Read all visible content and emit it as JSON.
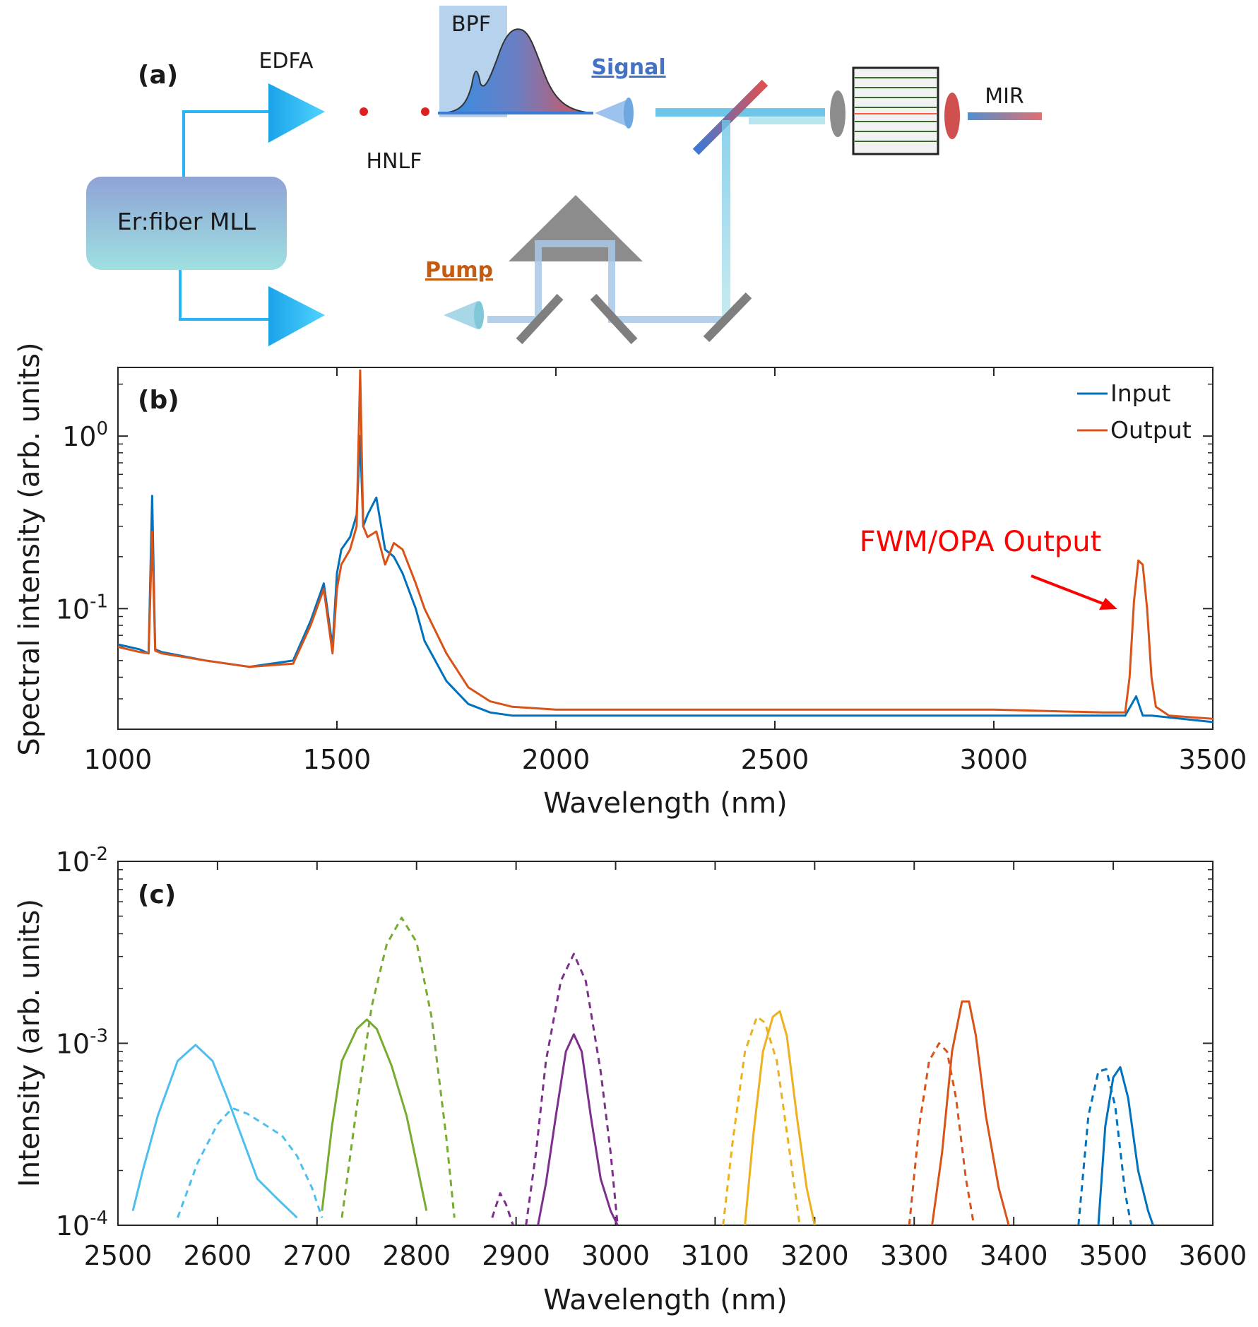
{
  "diagram": {
    "panel_label": "(a)",
    "edfa": "EDFA",
    "bpf": "BPF",
    "signal": "Signal",
    "mir": "MIR",
    "hnlf": "HNLF",
    "laser": "Er:fiber MLL",
    "pump": "Pump",
    "colors": {
      "fiber": "#29b6f6",
      "signal": "#4472c4",
      "pump": "#c55a11",
      "amp": "#1aa3e8",
      "prism": "#8c8c8c"
    }
  },
  "chart_data": [
    {
      "type": "line",
      "panel_label": "(b)",
      "title": "",
      "xlabel": "Wavelength (nm)",
      "ylabel": "Spectral intensity (arb. units)",
      "xscale": "linear",
      "yscale": "log",
      "xlim": [
        1000,
        3500
      ],
      "ylim": [
        0.02,
        2.5
      ],
      "xticks": [
        1000,
        1500,
        2000,
        2500,
        3000,
        3500
      ],
      "xtick_labels": [
        "1000",
        "1500",
        "2000",
        "2500",
        "3000",
        "3500"
      ],
      "yticks": [
        0.1,
        1
      ],
      "ytick_labels": [
        {
          "base": "10",
          "exp": "-1"
        },
        {
          "base": "10",
          "exp": "0"
        }
      ],
      "legend": {
        "position": "top-right",
        "entries": [
          "Input",
          "Output"
        ]
      },
      "annotation": {
        "text": "FWM/OPA Output",
        "color": "#ff0000",
        "points_to": [
          3325,
          0.09
        ]
      },
      "series": [
        {
          "name": "Input",
          "color": "#0072bd",
          "x": [
            1000,
            1050,
            1070,
            1078,
            1085,
            1100,
            1200,
            1300,
            1400,
            1440,
            1470,
            1490,
            1500,
            1510,
            1530,
            1545,
            1553,
            1560,
            1570,
            1590,
            1610,
            1630,
            1650,
            1680,
            1700,
            1750,
            1800,
            1850,
            1900,
            2000,
            2500,
            3000,
            3300,
            3325,
            3340,
            3360,
            3500
          ],
          "y": [
            0.062,
            0.058,
            0.055,
            0.45,
            0.058,
            0.056,
            0.05,
            0.046,
            0.05,
            0.085,
            0.14,
            0.06,
            0.16,
            0.22,
            0.26,
            0.35,
            1.0,
            0.3,
            0.35,
            0.44,
            0.22,
            0.2,
            0.16,
            0.1,
            0.065,
            0.038,
            0.028,
            0.025,
            0.024,
            0.024,
            0.024,
            0.024,
            0.024,
            0.031,
            0.024,
            0.024,
            0.022
          ]
        },
        {
          "name": "Output",
          "color": "#d95319",
          "x": [
            1000,
            1050,
            1070,
            1078,
            1085,
            1100,
            1200,
            1300,
            1400,
            1440,
            1470,
            1490,
            1500,
            1510,
            1530,
            1545,
            1553,
            1560,
            1570,
            1590,
            1610,
            1630,
            1650,
            1680,
            1700,
            1750,
            1800,
            1850,
            1900,
            2000,
            2500,
            3000,
            3250,
            3300,
            3310,
            3320,
            3330,
            3340,
            3350,
            3360,
            3370,
            3400,
            3500
          ],
          "y": [
            0.06,
            0.056,
            0.055,
            0.28,
            0.057,
            0.055,
            0.05,
            0.046,
            0.048,
            0.08,
            0.13,
            0.055,
            0.13,
            0.18,
            0.22,
            0.3,
            2.4,
            0.3,
            0.26,
            0.28,
            0.18,
            0.24,
            0.22,
            0.14,
            0.1,
            0.055,
            0.035,
            0.029,
            0.027,
            0.026,
            0.026,
            0.026,
            0.025,
            0.025,
            0.04,
            0.11,
            0.19,
            0.18,
            0.1,
            0.04,
            0.027,
            0.024,
            0.023
          ]
        }
      ]
    },
    {
      "type": "line",
      "panel_label": "(c)",
      "title": "",
      "xlabel": "Wavelength (nm)",
      "ylabel": "Intensity (arb. units)",
      "xscale": "linear",
      "yscale": "log",
      "xlim": [
        2500,
        3600
      ],
      "ylim": [
        0.0001,
        0.01
      ],
      "xticks": [
        2500,
        2600,
        2700,
        2800,
        2900,
        3000,
        3100,
        3200,
        3300,
        3400,
        3500,
        3600
      ],
      "xtick_labels": [
        "2500",
        "2600",
        "2700",
        "2800",
        "2900",
        "3000",
        "3100",
        "3200",
        "3300",
        "3400",
        "3500",
        "3600"
      ],
      "yticks": [
        0.0001,
        0.001,
        0.01
      ],
      "ytick_labels": [
        {
          "base": "10",
          "exp": "-4"
        },
        {
          "base": "10",
          "exp": "-3"
        },
        {
          "base": "10",
          "exp": "-2"
        }
      ],
      "series": [
        {
          "name": "light-blue solid",
          "color": "#4dbeee",
          "dash": false,
          "x": [
            2515,
            2525,
            2540,
            2560,
            2578,
            2595,
            2610,
            2625,
            2640,
            2660,
            2680
          ],
          "y": [
            0.00012,
            0.0002,
            0.0004,
            0.0008,
            0.00098,
            0.0008,
            0.0005,
            0.0003,
            0.00018,
            0.00014,
            0.00011
          ]
        },
        {
          "name": "light-blue dashed",
          "color": "#4dbeee",
          "dash": true,
          "x": [
            2560,
            2580,
            2600,
            2615,
            2630,
            2650,
            2665,
            2680,
            2695,
            2705
          ],
          "y": [
            0.00011,
            0.00022,
            0.00036,
            0.00044,
            0.00041,
            0.00035,
            0.00031,
            0.00024,
            0.00016,
            0.00011
          ]
        },
        {
          "name": "green solid",
          "color": "#77ac30",
          "dash": false,
          "x": [
            2705,
            2715,
            2725,
            2740,
            2750,
            2760,
            2775,
            2790,
            2800,
            2810
          ],
          "y": [
            0.00012,
            0.00035,
            0.0008,
            0.0012,
            0.00135,
            0.0012,
            0.00075,
            0.0004,
            0.00022,
            0.00012
          ]
        },
        {
          "name": "green dashed",
          "color": "#77ac30",
          "dash": true,
          "x": [
            2725,
            2740,
            2755,
            2770,
            2785,
            2800,
            2815,
            2830,
            2838
          ],
          "y": [
            0.00011,
            0.00045,
            0.0016,
            0.0035,
            0.0049,
            0.0036,
            0.0014,
            0.0003,
            0.00011
          ]
        },
        {
          "name": "purple solid",
          "color": "#7e2f8e",
          "dash": false,
          "x": [
            2922,
            2930,
            2940,
            2950,
            2958,
            2966,
            2975,
            2985,
            2995,
            3002
          ],
          "y": [
            0.0001,
            0.00017,
            0.0004,
            0.0009,
            0.00112,
            0.0009,
            0.0004,
            0.00018,
            0.00012,
            0.0001
          ]
        },
        {
          "name": "purple dashed",
          "color": "#7e2f8e",
          "dash": true,
          "x": [
            2910,
            2920,
            2930,
            2945,
            2958,
            2970,
            2985,
            2995,
            3002
          ],
          "y": [
            0.0001,
            0.00025,
            0.0008,
            0.0022,
            0.0031,
            0.0022,
            0.0007,
            0.00025,
            0.0001
          ]
        },
        {
          "name": "purple dashed small",
          "color": "#7e2f8e",
          "dash": true,
          "x": [
            2876,
            2884,
            2890,
            2897
          ],
          "y": [
            0.00011,
            0.00015,
            0.00013,
            0.0001
          ]
        },
        {
          "name": "yellow solid",
          "color": "#edb120",
          "dash": false,
          "x": [
            3130,
            3138,
            3148,
            3158,
            3165,
            3172,
            3182,
            3192,
            3200
          ],
          "y": [
            0.0001,
            0.0003,
            0.0009,
            0.0014,
            0.0015,
            0.0011,
            0.0004,
            0.00016,
            0.0001
          ]
        },
        {
          "name": "yellow dashed",
          "color": "#edb120",
          "dash": true,
          "x": [
            3108,
            3118,
            3130,
            3142,
            3150,
            3162,
            3175,
            3185
          ],
          "y": [
            0.0001,
            0.0003,
            0.0009,
            0.0014,
            0.0013,
            0.0008,
            0.00025,
            0.0001
          ]
        },
        {
          "name": "orange solid",
          "color": "#d95319",
          "dash": false,
          "x": [
            3318,
            3328,
            3338,
            3348,
            3355,
            3362,
            3372,
            3385,
            3395
          ],
          "y": [
            0.0001,
            0.00025,
            0.0009,
            0.0017,
            0.0017,
            0.0011,
            0.0004,
            0.00016,
            0.0001
          ]
        },
        {
          "name": "orange dashed",
          "color": "#d95319",
          "dash": true,
          "x": [
            3295,
            3305,
            3315,
            3325,
            3333,
            3342,
            3352,
            3360
          ],
          "y": [
            0.0001,
            0.00035,
            0.0008,
            0.001,
            0.0009,
            0.0005,
            0.00018,
            0.0001
          ]
        },
        {
          "name": "blue solid",
          "color": "#0072bd",
          "dash": false,
          "x": [
            3485,
            3492,
            3500,
            3507,
            3515,
            3525,
            3535,
            3540
          ],
          "y": [
            0.0001,
            0.00035,
            0.00065,
            0.00074,
            0.0005,
            0.0002,
            0.00012,
            0.0001
          ]
        },
        {
          "name": "blue dashed",
          "color": "#0072bd",
          "dash": true,
          "x": [
            3465,
            3475,
            3485,
            3493,
            3502,
            3512,
            3518
          ],
          "y": [
            0.0001,
            0.0004,
            0.0007,
            0.00072,
            0.00045,
            0.00015,
            0.0001
          ]
        }
      ]
    }
  ]
}
